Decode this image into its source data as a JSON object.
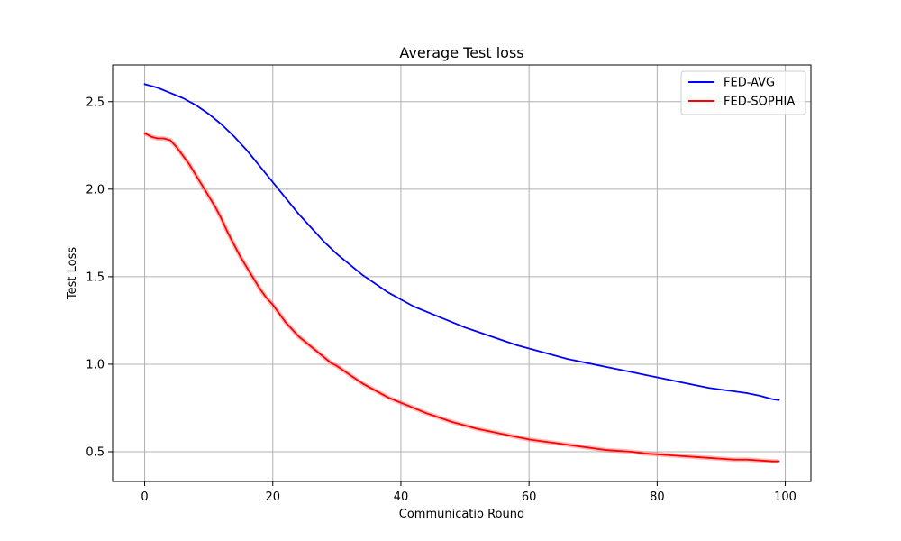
{
  "chart_data": {
    "type": "line",
    "title": "Average Test loss",
    "xlabel": "Communicatio Round",
    "ylabel": "Test Loss",
    "xlim": [
      -5,
      104
    ],
    "ylim": [
      0.33,
      2.71
    ],
    "xticks": [
      0,
      20,
      40,
      60,
      80,
      100
    ],
    "yticks": [
      0.5,
      1.0,
      1.5,
      2.0,
      2.5
    ],
    "xtick_labels": [
      "0",
      "20",
      "40",
      "60",
      "80",
      "100"
    ],
    "ytick_labels": [
      "0.5",
      "1.0",
      "1.5",
      "2.0",
      "2.5"
    ],
    "grid": true,
    "legend_position": "top-right",
    "series": [
      {
        "name": "FED-AVG",
        "color": "#0000ff",
        "x": [
          0,
          2,
          4,
          6,
          8,
          10,
          12,
          14,
          16,
          18,
          20,
          22,
          24,
          26,
          28,
          30,
          32,
          34,
          36,
          38,
          40,
          42,
          44,
          46,
          48,
          50,
          52,
          54,
          56,
          58,
          60,
          62,
          64,
          66,
          68,
          70,
          72,
          74,
          76,
          78,
          80,
          82,
          84,
          86,
          88,
          90,
          92,
          94,
          96,
          98,
          99
        ],
        "y": [
          2.6,
          2.58,
          2.55,
          2.52,
          2.48,
          2.43,
          2.37,
          2.3,
          2.22,
          2.13,
          2.04,
          1.95,
          1.86,
          1.78,
          1.7,
          1.63,
          1.57,
          1.51,
          1.46,
          1.41,
          1.37,
          1.33,
          1.3,
          1.27,
          1.24,
          1.21,
          1.185,
          1.16,
          1.135,
          1.11,
          1.09,
          1.07,
          1.05,
          1.03,
          1.015,
          1.0,
          0.985,
          0.97,
          0.955,
          0.94,
          0.925,
          0.91,
          0.895,
          0.88,
          0.865,
          0.855,
          0.845,
          0.835,
          0.82,
          0.8,
          0.795
        ]
      },
      {
        "name": "FED-SOPHIA",
        "color": "#ff0000",
        "x": [
          0,
          1,
          2,
          3,
          4,
          5,
          6,
          7,
          8,
          9,
          10,
          11,
          12,
          13,
          14,
          15,
          16,
          17,
          18,
          19,
          20,
          21,
          22,
          23,
          24,
          25,
          26,
          27,
          28,
          29,
          30,
          32,
          34,
          36,
          38,
          40,
          42,
          44,
          46,
          48,
          50,
          52,
          54,
          56,
          58,
          60,
          62,
          64,
          66,
          68,
          70,
          72,
          74,
          76,
          78,
          80,
          82,
          84,
          86,
          88,
          90,
          92,
          94,
          96,
          98,
          99
        ],
        "y": [
          2.32,
          2.3,
          2.29,
          2.29,
          2.28,
          2.24,
          2.19,
          2.14,
          2.08,
          2.02,
          1.96,
          1.9,
          1.83,
          1.75,
          1.68,
          1.61,
          1.55,
          1.49,
          1.43,
          1.38,
          1.34,
          1.29,
          1.24,
          1.2,
          1.16,
          1.13,
          1.1,
          1.07,
          1.04,
          1.01,
          0.99,
          0.94,
          0.89,
          0.85,
          0.81,
          0.78,
          0.75,
          0.72,
          0.695,
          0.67,
          0.65,
          0.63,
          0.615,
          0.6,
          0.585,
          0.57,
          0.56,
          0.55,
          0.54,
          0.53,
          0.52,
          0.51,
          0.505,
          0.5,
          0.49,
          0.485,
          0.48,
          0.475,
          0.47,
          0.465,
          0.46,
          0.455,
          0.455,
          0.45,
          0.445,
          0.445
        ]
      }
    ]
  }
}
